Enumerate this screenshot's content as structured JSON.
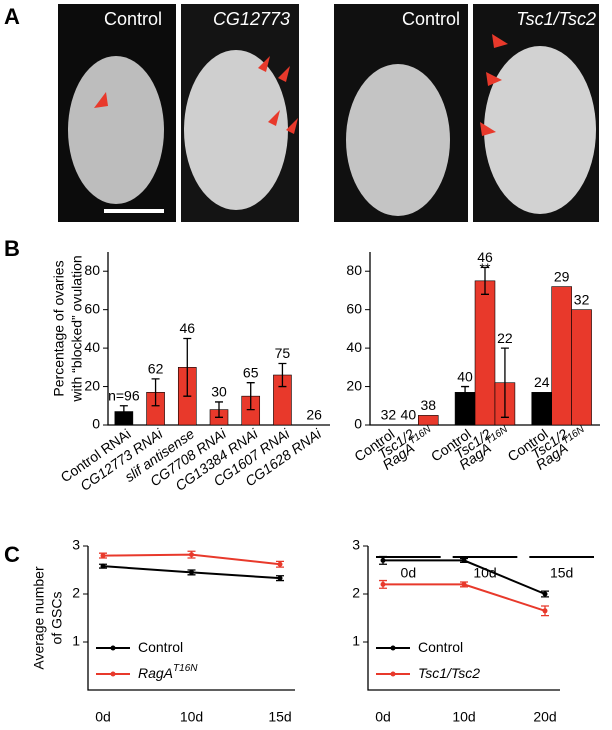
{
  "figure": {
    "panel_labels": [
      "A",
      "B",
      "C"
    ],
    "image_captions": [
      "Control",
      "CG12773",
      "Control",
      "Tsc1/Tsc2"
    ]
  },
  "chart_data": [
    {
      "type": "bar",
      "ylabel": [
        "Percentage of ovaries",
        "with “blocked” ovulation"
      ],
      "categories": [
        "Control RNAi",
        "CG12773 RNAi",
        "slif antisense",
        "CG7708 RNAi",
        "CG13384 RNAi",
        "CG1607 RNAi",
        "CG1628 RNAi"
      ],
      "values": [
        7,
        17,
        30,
        8,
        15,
        26,
        0
      ],
      "errors": [
        3,
        7,
        15,
        4,
        7,
        6,
        null
      ],
      "n_labels": [
        "n=96",
        "62",
        "46",
        "30",
        "65",
        "75",
        "26"
      ],
      "colors": [
        "#000000",
        "#e8392b",
        "#e8392b",
        "#e8392b",
        "#e8392b",
        "#e8392b",
        "#e8392b"
      ],
      "ylim": [
        0,
        90
      ],
      "yticks": [
        0,
        20,
        40,
        60,
        80
      ]
    },
    {
      "type": "grouped_bar",
      "categories": [
        "0d",
        "10d",
        "15d"
      ],
      "series": [
        {
          "name": "Control",
          "color": "#000000",
          "values": [
            0,
            17,
            17
          ],
          "errors": [
            null,
            3,
            null
          ],
          "n_labels": [
            "32",
            "40",
            "24"
          ]
        },
        {
          "name": "Tsc1/2",
          "color": "#e8392b",
          "values": [
            0,
            75,
            72
          ],
          "errors": [
            null,
            7,
            null
          ],
          "n_labels": [
            "40",
            "46",
            "29"
          ]
        },
        {
          "name": "RagA",
          "name_sup": "T16N",
          "color": "#e8392b",
          "values": [
            5,
            22,
            60
          ],
          "errors": [
            null,
            18,
            null
          ],
          "n_labels": [
            "38",
            "22",
            "32"
          ]
        }
      ],
      "annotation": "**",
      "ylim": [
        0,
        90
      ],
      "yticks": [
        0,
        20,
        40,
        60,
        80
      ]
    },
    {
      "type": "line",
      "ylabel": [
        "Average number",
        "of GSCs"
      ],
      "categories": [
        "0d",
        "10d",
        "15d"
      ],
      "series": [
        {
          "name": "Control",
          "color": "#000000",
          "values": [
            2.58,
            2.45,
            2.33
          ],
          "errors": [
            0.04,
            0.05,
            0.05
          ]
        },
        {
          "name": "RagA",
          "name_sup": "T16N",
          "color": "#e8392b",
          "values": [
            2.8,
            2.82,
            2.62
          ],
          "errors": [
            0.05,
            0.07,
            0.06
          ]
        }
      ],
      "legend": "lower left",
      "ylim": [
        0,
        3
      ],
      "yticks": [
        1,
        2,
        3
      ]
    },
    {
      "type": "line",
      "categories": [
        "0d",
        "10d",
        "20d"
      ],
      "series": [
        {
          "name": "Control",
          "color": "#000000",
          "values": [
            2.7,
            2.7,
            2.0
          ],
          "errors": [
            0.08,
            0.04,
            0.06
          ]
        },
        {
          "name": "Tsc1/Tsc2",
          "color": "#e8392b",
          "values": [
            2.2,
            2.2,
            1.65
          ],
          "errors": [
            0.08,
            0.05,
            0.1
          ]
        }
      ],
      "legend": "lower left",
      "ylim": [
        0,
        3
      ],
      "yticks": [
        1,
        2,
        3
      ]
    }
  ]
}
